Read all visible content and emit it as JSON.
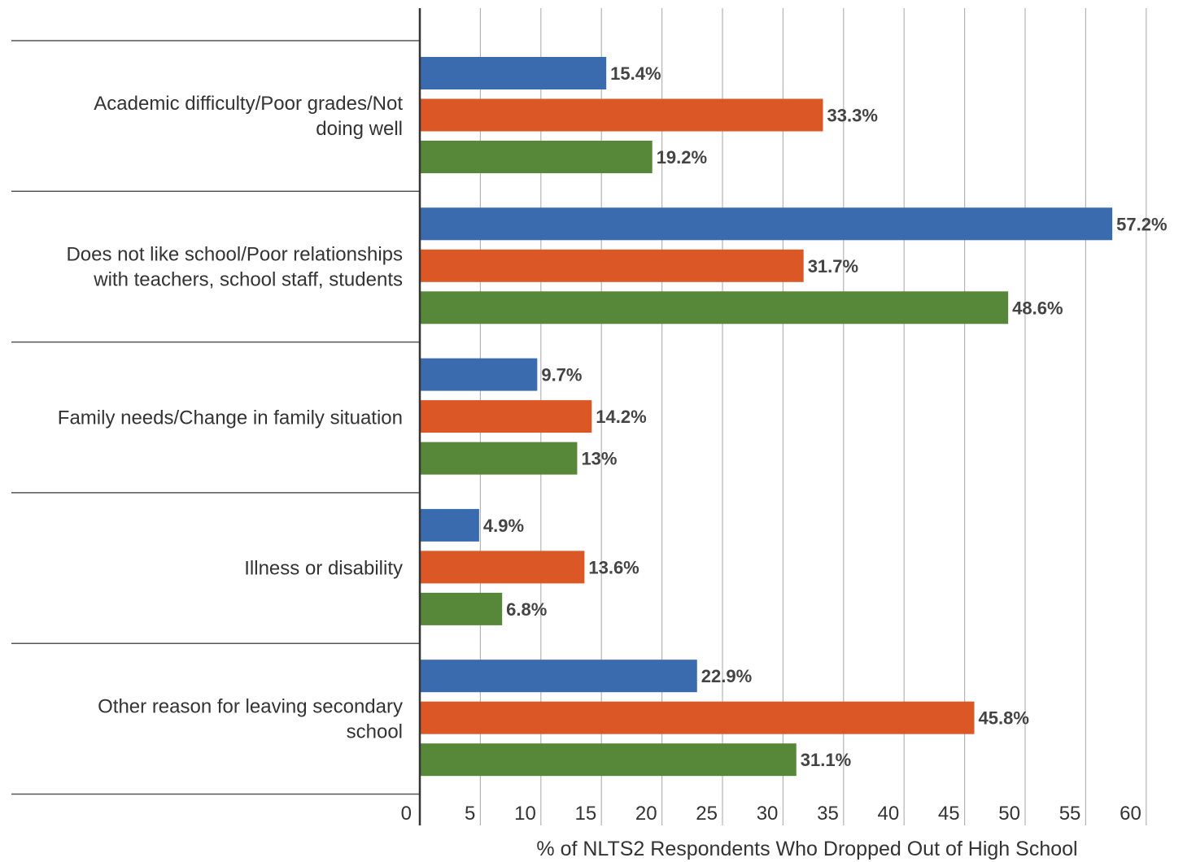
{
  "chart_data": {
    "type": "bar",
    "orientation": "horizontal",
    "categories": [
      [
        "Academic difficulty/Poor grades/Not",
        "doing well"
      ],
      [
        "Does not like school/Poor relationships",
        "with teachers, school staff, students"
      ],
      [
        "Family needs/Change in family situation"
      ],
      [
        "Illness or disability"
      ],
      [
        "Other reason for leaving secondary",
        "school"
      ]
    ],
    "series": [
      {
        "values": [
          15.4,
          57.2,
          9.7,
          4.9,
          22.9
        ],
        "labels": [
          "15.4%",
          "57.2%",
          "9.7%",
          "4.9%",
          "22.9%"
        ],
        "color": "#3A6BAF"
      },
      {
        "values": [
          33.3,
          31.7,
          14.2,
          13.6,
          45.8
        ],
        "labels": [
          "33.3%",
          "31.7%",
          "14.2%",
          "13.6%",
          "45.8%"
        ],
        "color": "#DB5726"
      },
      {
        "values": [
          19.2,
          48.6,
          13,
          6.8,
          31.1
        ],
        "labels": [
          "19.2%",
          "48.6%",
          "13%",
          "6.8%",
          "31.1%"
        ],
        "color": "#578839"
      }
    ],
    "xlim": [
      0,
      60
    ],
    "xticks": [
      "0",
      "5",
      "10",
      "15",
      "20",
      "25",
      "30",
      "35",
      "40",
      "45",
      "50",
      "55",
      "60"
    ],
    "xlabel": "% of NLTS2 Respondents Who Dropped Out of High School",
    "grid": true,
    "legend": "none"
  }
}
